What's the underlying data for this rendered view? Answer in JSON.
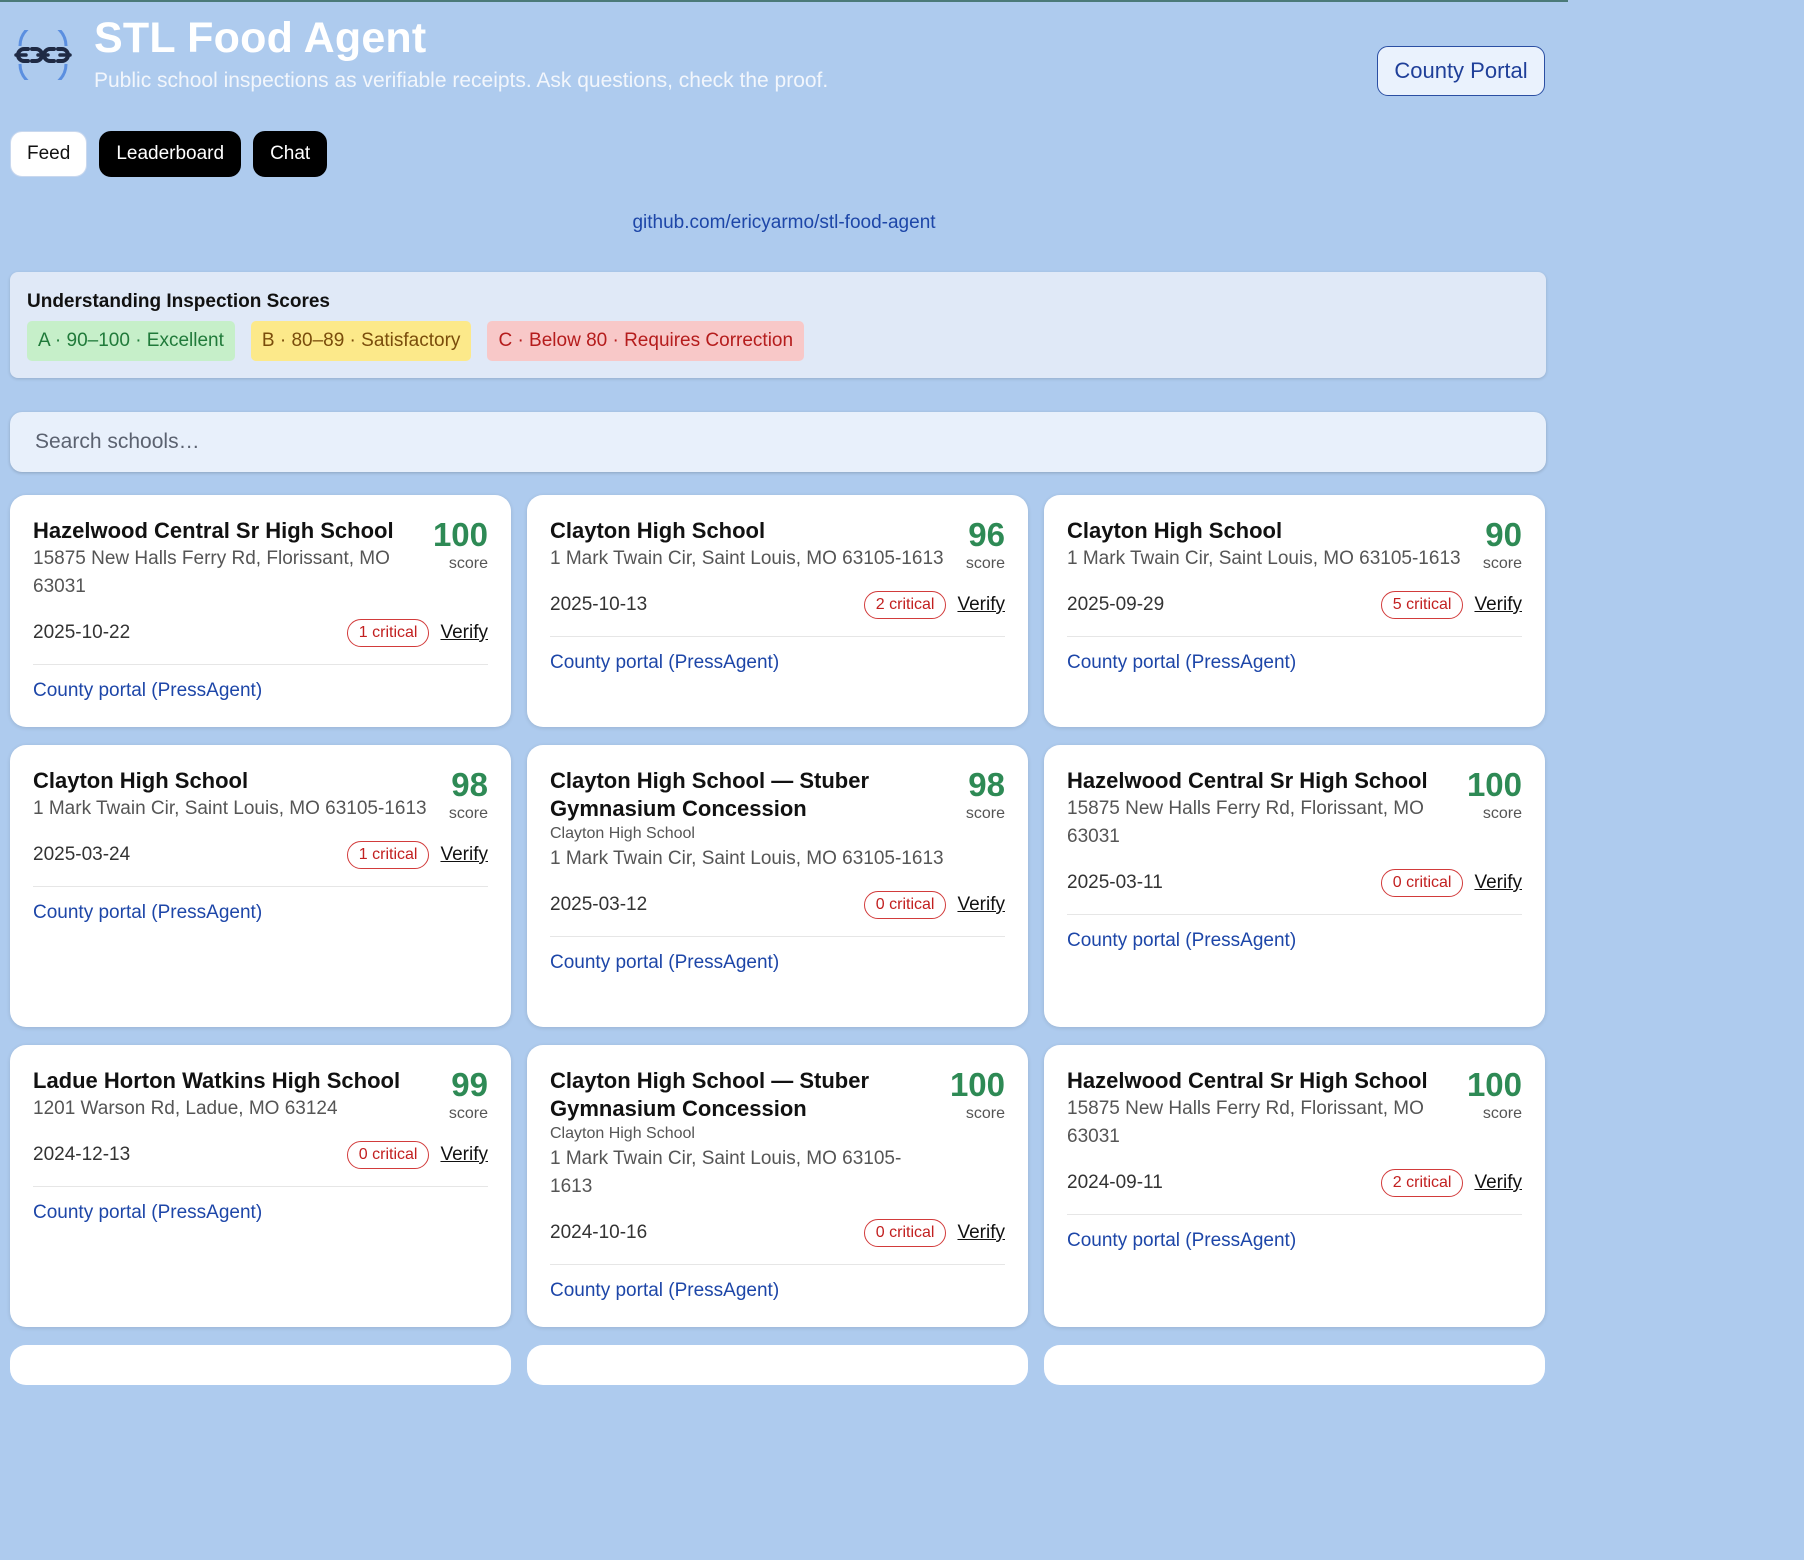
{
  "header": {
    "title": "STL Food Agent",
    "subtitle": "Public school inspections as verifiable receipts. Ask questions, check the proof.",
    "portal_button": "County Portal",
    "logo_icon": "chain-link-icon"
  },
  "tabs": [
    {
      "label": "Feed",
      "active": true
    },
    {
      "label": "Leaderboard",
      "active": false
    },
    {
      "label": "Chat",
      "active": false
    }
  ],
  "repo_link": "github.com/ericyarmo/stl-food-agent",
  "legend": {
    "title": "Understanding Inspection Scores",
    "grades": [
      {
        "label": "A · 90–100 · Excellent",
        "color": "#c6efc9"
      },
      {
        "label": "B · 80–89 · Satisfactory",
        "color": "#fce98a"
      },
      {
        "label": "C · Below 80 · Requires Correction",
        "color": "#f8c8c8"
      }
    ]
  },
  "search": {
    "placeholder": "Search schools…",
    "value": ""
  },
  "cards": [
    {
      "name": "Hazelwood Central Sr High School",
      "sub": "",
      "address": "15875 New Halls Ferry Rd, Florissant, MO 63031",
      "score": "100",
      "score_label": "score",
      "date": "2025-10-22",
      "critical": "1 critical",
      "verify": "Verify",
      "portal": "County portal (PressAgent)"
    },
    {
      "name": "Clayton High School",
      "sub": "",
      "address": "1 Mark Twain Cir, Saint Louis, MO 63105-1613",
      "score": "96",
      "score_label": "score",
      "date": "2025-10-13",
      "critical": "2 critical",
      "verify": "Verify",
      "portal": "County portal (PressAgent)"
    },
    {
      "name": "Clayton High School",
      "sub": "",
      "address": "1 Mark Twain Cir, Saint Louis, MO 63105-1613",
      "score": "90",
      "score_label": "score",
      "date": "2025-09-29",
      "critical": "5 critical",
      "verify": "Verify",
      "portal": "County portal (PressAgent)"
    },
    {
      "name": "Clayton High School",
      "sub": "",
      "address": "1 Mark Twain Cir, Saint Louis, MO 63105-1613",
      "score": "98",
      "score_label": "score",
      "date": "2025-03-24",
      "critical": "1 critical",
      "verify": "Verify",
      "portal": "County portal (PressAgent)"
    },
    {
      "name": "Clayton High School — Stuber Gymnasium Concession",
      "sub": "Clayton High School",
      "address": "1 Mark Twain Cir, Saint Louis, MO 63105-1613",
      "score": "98",
      "score_label": "score",
      "date": "2025-03-12",
      "critical": "0 critical",
      "verify": "Verify",
      "portal": "County portal (PressAgent)"
    },
    {
      "name": "Hazelwood Central Sr High School",
      "sub": "",
      "address": "15875 New Halls Ferry Rd, Florissant, MO 63031",
      "score": "100",
      "score_label": "score",
      "date": "2025-03-11",
      "critical": "0 critical",
      "verify": "Verify",
      "portal": "County portal (PressAgent)"
    },
    {
      "name": "Ladue Horton Watkins High School",
      "sub": "",
      "address": "1201 Warson Rd, Ladue, MO 63124",
      "score": "99",
      "score_label": "score",
      "date": "2024-12-13",
      "critical": "0 critical",
      "verify": "Verify",
      "portal": "County portal (PressAgent)"
    },
    {
      "name": "Clayton High School — Stuber Gymnasium Concession",
      "sub": "Clayton High School",
      "address": "1 Mark Twain Cir, Saint Louis, MO 63105-1613",
      "score": "100",
      "score_label": "score",
      "date": "2024-10-16",
      "critical": "0 critical",
      "verify": "Verify",
      "portal": "County portal (PressAgent)"
    },
    {
      "name": "Hazelwood Central Sr High School",
      "sub": "",
      "address": "15875 New Halls Ferry Rd, Florissant, MO 63031",
      "score": "100",
      "score_label": "score",
      "date": "2024-09-11",
      "critical": "2 critical",
      "verify": "Verify",
      "portal": "County portal (PressAgent)"
    }
  ],
  "colors": {
    "background": "#aecbee",
    "score_green": "#2e8a55",
    "critical_red": "#c22020",
    "link_blue": "#1d46a8"
  }
}
